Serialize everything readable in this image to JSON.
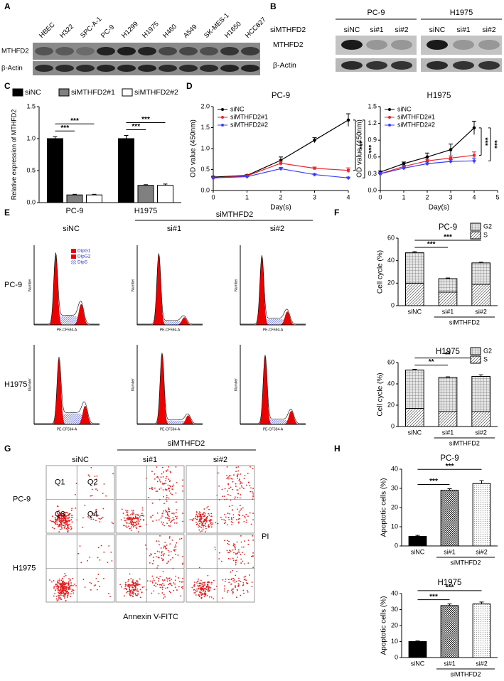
{
  "panel_labels": [
    "A",
    "B",
    "C",
    "D",
    "E",
    "F",
    "G",
    "H"
  ],
  "blot_a": {
    "lanes": [
      "HBEC",
      "H322",
      "SPC-A-1",
      "PC-9",
      "H1299",
      "H1975",
      "H460",
      "A549",
      "SK-MES-1",
      "H1650",
      "HCC827"
    ],
    "rows": [
      "MTHFD2",
      "β-Actin"
    ]
  },
  "blot_b": {
    "cell_lines": [
      "PC-9",
      "H1975"
    ],
    "treatment_label": "siMTHFD2",
    "lanes": [
      "siNC",
      "si#1",
      "si#2"
    ],
    "rows": [
      "MTHFD2",
      "β-Actin"
    ]
  },
  "flow_cycle": {
    "columns_header": "siMTHFD2",
    "columns": [
      "siNC",
      "si#1",
      "si#2"
    ],
    "rows": [
      "PC-9",
      "H1975"
    ],
    "legend": [
      "DipG1",
      "DipG2",
      "DipS"
    ],
    "x_axis": "PE-CF594-A",
    "y_axis": "Number"
  },
  "flow_apoptosis": {
    "columns_header": "siMTHFD2",
    "columns": [
      "siNC",
      "si#1",
      "si#2"
    ],
    "rows": [
      "PC-9",
      "H1975"
    ],
    "quadrants": [
      "Q1",
      "Q2",
      "Q3",
      "Q4"
    ],
    "y_axis": "PI",
    "x_axis": "Annexin V-FITC"
  },
  "chart_data": [
    {
      "type": "bar",
      "ylabel": "Relative expression of MTHFD2",
      "categories": [
        "PC-9",
        "H1975"
      ],
      "series": [
        {
          "name": "siNC",
          "color": "#000000",
          "values": [
            1.0,
            1.0
          ],
          "errors": [
            0.03,
            0.05
          ]
        },
        {
          "name": "siMTHFD2#1",
          "color": "#808080",
          "values": [
            0.12,
            0.27
          ],
          "errors": [
            0.01,
            0.01
          ]
        },
        {
          "name": "siMTHFD2#2",
          "color": "#ffffff",
          "values": [
            0.12,
            0.27
          ],
          "errors": [
            0.01,
            0.02
          ]
        }
      ],
      "ylim": [
        0,
        1.5
      ],
      "yticks": [
        {
          "value": 0,
          "label": "0.0"
        },
        0.5,
        {
          "value": 1,
          "label": "1.0"
        },
        1.5
      ],
      "legend": "top",
      "annotations": [
        "***",
        "***",
        "***",
        "***"
      ]
    },
    {
      "type": "line",
      "title": "PC-9",
      "xlabel": "Day(s)",
      "ylabel": "OD value (450nm)",
      "x": [
        0,
        1,
        2,
        3,
        4
      ],
      "series": [
        {
          "name": "siNC",
          "color": "#000000",
          "values": [
            0.32,
            0.36,
            0.72,
            1.2,
            1.68
          ],
          "errors": [
            0.02,
            0.02,
            0.08,
            0.06,
            0.15
          ]
        },
        {
          "name": "siMTHFD2#1",
          "color": "#e8262b",
          "values": [
            0.3,
            0.35,
            0.65,
            0.53,
            0.48
          ],
          "errors": [
            0.02,
            0.02,
            0.05,
            0.03,
            0.06
          ]
        },
        {
          "name": "siMTHFD2#2",
          "color": "#3b3bff",
          "values": [
            0.3,
            0.33,
            0.52,
            0.38,
            0.3
          ],
          "errors": [
            0.02,
            0.02,
            0.03,
            0.02,
            0.02
          ]
        }
      ],
      "xlim": [
        0,
        4
      ],
      "xticks": [
        0,
        1,
        2,
        3,
        4
      ],
      "ylim": [
        0,
        2
      ],
      "yticks": [
        {
          "value": 0,
          "label": "0.0"
        },
        0.5,
        {
          "value": 1,
          "label": "1.0"
        },
        1.5,
        {
          "value": 2,
          "label": "2.0"
        }
      ],
      "legend": "top-left",
      "annotations": [
        "***",
        "***"
      ]
    },
    {
      "type": "line",
      "title": "H1975",
      "xlabel": "Day(s)",
      "ylabel": "OD value (450nm)",
      "x": [
        0,
        1,
        2,
        3,
        4
      ],
      "series": [
        {
          "name": "siNC",
          "color": "#000000",
          "values": [
            0.33,
            0.48,
            0.6,
            0.73,
            1.12
          ],
          "errors": [
            0.02,
            0.03,
            0.07,
            0.1,
            0.12
          ]
        },
        {
          "name": "siMTHFD2#1",
          "color": "#e8262b",
          "values": [
            0.3,
            0.43,
            0.53,
            0.58,
            0.63
          ],
          "errors": [
            0.02,
            0.02,
            0.03,
            0.04,
            0.06
          ]
        },
        {
          "name": "siMTHFD2#2",
          "color": "#3b3bff",
          "values": [
            0.3,
            0.4,
            0.48,
            0.52,
            0.53
          ],
          "errors": [
            0.02,
            0.02,
            0.03,
            0.03,
            0.05
          ]
        }
      ],
      "xlim": [
        0,
        5
      ],
      "xticks": [
        0,
        1,
        2,
        3,
        4,
        5
      ],
      "ylim": [
        0,
        1.5
      ],
      "yticks": [
        {
          "value": 0,
          "label": "0.0"
        },
        0.3,
        0.6,
        0.9,
        1.2,
        1.5
      ],
      "legend": "top-left",
      "annotations": [
        "***",
        "***"
      ]
    },
    {
      "type": "stacked_bar",
      "title": "PC-9",
      "ylabel": "Cell cycle (%)",
      "categories": [
        "siNC",
        "si#1",
        "si#2"
      ],
      "group_label": "siMTHFD2",
      "series": [
        {
          "name": "S",
          "pattern": "diagonal",
          "values": [
            20,
            12,
            19
          ]
        },
        {
          "name": "G2",
          "pattern": "crosshatch",
          "values": [
            27,
            12,
            19
          ],
          "errors": [
            1,
            0.6,
            0.6
          ]
        }
      ],
      "ylim": [
        0,
        60
      ],
      "yticks": [
        0,
        20,
        40,
        60
      ],
      "legend": "top-right",
      "annotations": [
        "***",
        "***"
      ]
    },
    {
      "type": "stacked_bar",
      "title": "H1975",
      "ylabel": "Cell cycle (%)",
      "categories": [
        "siNC",
        "si#1",
        "si#2"
      ],
      "group_label": "siMTHFD2",
      "series": [
        {
          "name": "S",
          "pattern": "diagonal",
          "values": [
            17,
            14,
            14
          ]
        },
        {
          "name": "G2",
          "pattern": "crosshatch",
          "values": [
            36,
            32,
            33
          ],
          "errors": [
            0.6,
            0.6,
            1.5
          ]
        }
      ],
      "ylim": [
        0,
        60
      ],
      "yticks": [
        0,
        20,
        40,
        60
      ],
      "legend": "top-right",
      "annotations": [
        "**",
        "**"
      ]
    },
    {
      "type": "bar",
      "title": "PC-9",
      "ylabel": "Apoptotic cells (%)",
      "categories": [
        "siNC",
        "si#1",
        "si#2"
      ],
      "group_label": "siMTHFD2",
      "values": [
        5,
        29,
        32.5
      ],
      "errors": [
        0.5,
        0.8,
        1.5
      ],
      "color": "#000000",
      "bar_styles": [
        "solid",
        "checker",
        "dotted"
      ],
      "ylim": [
        0,
        40
      ],
      "yticks": [
        0,
        10,
        20,
        30,
        40
      ],
      "annotations": [
        "***",
        "***"
      ]
    },
    {
      "type": "bar",
      "title": "H1975",
      "ylabel": "Apoptotic cells (%)",
      "categories": [
        "siNC",
        "si#1",
        "si#2"
      ],
      "group_label": "siMTHFD2",
      "values": [
        10,
        32.5,
        33.5
      ],
      "errors": [
        0.4,
        1,
        1.2
      ],
      "color": "#000000",
      "bar_styles": [
        "solid",
        "checker",
        "dotted"
      ],
      "ylim": [
        0,
        40
      ],
      "yticks": [
        0,
        10,
        20,
        30,
        40
      ],
      "annotations": [
        "***",
        "***"
      ]
    }
  ]
}
